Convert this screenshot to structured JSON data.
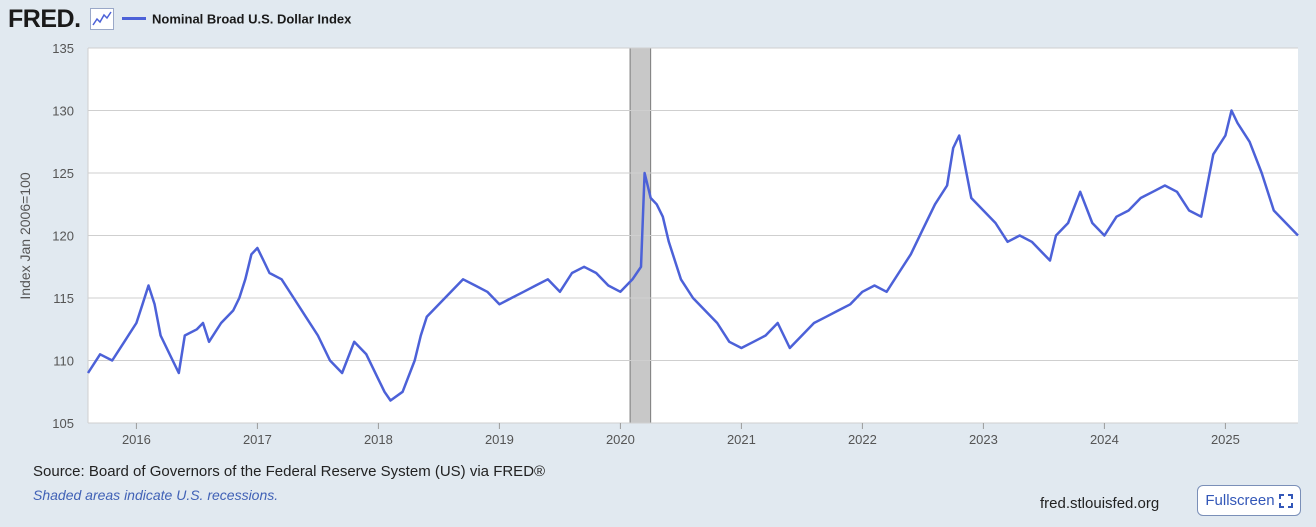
{
  "header": {
    "logo_text": "FRED",
    "logo_dot": ".",
    "legend_label": "Nominal Broad U.S. Dollar Index"
  },
  "colors": {
    "series": "#4c61d8",
    "recession": "#c8c8c8",
    "grid": "#cfcfcf",
    "plot_bg": "#ffffff",
    "page_bg": "#e1e9f0"
  },
  "footer": {
    "source": "Source: Board of Governors of the Federal Reserve System (US) via FRED®",
    "recession_note": "Shaded areas indicate U.S. recessions.",
    "site": "fred.stlouisfed.org",
    "fullscreen_label": "Fullscreen"
  },
  "icons": {
    "graph": "graph-icon",
    "fullscreen": "fullscreen-icon"
  },
  "chart_data": {
    "type": "line",
    "title": "Nominal Broad U.S. Dollar Index",
    "xlabel": "",
    "ylabel": "Index Jan 2006=100",
    "xlim": [
      2015.6,
      2025.6
    ],
    "ylim": [
      105,
      135
    ],
    "yticks": [
      105,
      110,
      115,
      120,
      125,
      130,
      135
    ],
    "xticks": [
      2016,
      2017,
      2018,
      2019,
      2020,
      2021,
      2022,
      2023,
      2024,
      2025
    ],
    "grid": true,
    "legend_position": "top-left",
    "recessions": [
      [
        2020.08,
        2020.25
      ]
    ],
    "series": [
      {
        "name": "Nominal Broad U.S. Dollar Index",
        "x": [
          2015.6,
          2015.7,
          2015.8,
          2015.9,
          2016.0,
          2016.05,
          2016.1,
          2016.15,
          2016.2,
          2016.3,
          2016.35,
          2016.4,
          2016.5,
          2016.55,
          2016.6,
          2016.7,
          2016.8,
          2016.85,
          2016.9,
          2016.95,
          2017.0,
          2017.05,
          2017.1,
          2017.2,
          2017.3,
          2017.4,
          2017.5,
          2017.6,
          2017.7,
          2017.8,
          2017.9,
          2018.0,
          2018.05,
          2018.1,
          2018.2,
          2018.3,
          2018.35,
          2018.4,
          2018.5,
          2018.6,
          2018.7,
          2018.8,
          2018.9,
          2019.0,
          2019.1,
          2019.2,
          2019.3,
          2019.4,
          2019.5,
          2019.6,
          2019.7,
          2019.8,
          2019.9,
          2020.0,
          2020.1,
          2020.17,
          2020.2,
          2020.25,
          2020.3,
          2020.35,
          2020.4,
          2020.5,
          2020.6,
          2020.7,
          2020.8,
          2020.9,
          2021.0,
          2021.1,
          2021.2,
          2021.3,
          2021.4,
          2021.5,
          2021.6,
          2021.7,
          2021.8,
          2021.9,
          2022.0,
          2022.1,
          2022.2,
          2022.3,
          2022.4,
          2022.5,
          2022.6,
          2022.7,
          2022.75,
          2022.8,
          2022.9,
          2023.0,
          2023.1,
          2023.2,
          2023.3,
          2023.4,
          2023.5,
          2023.55,
          2023.6,
          2023.7,
          2023.8,
          2023.9,
          2024.0,
          2024.1,
          2024.2,
          2024.3,
          2024.4,
          2024.5,
          2024.6,
          2024.7,
          2024.8,
          2024.9,
          2025.0,
          2025.05,
          2025.1,
          2025.2,
          2025.3,
          2025.4,
          2025.5,
          2025.6
        ],
        "values": [
          109.0,
          110.5,
          110.0,
          111.5,
          113.0,
          114.5,
          116.0,
          114.5,
          112.0,
          110.0,
          109.0,
          112.0,
          112.5,
          113.0,
          111.5,
          113.0,
          114.0,
          115.0,
          116.5,
          118.5,
          119.0,
          118.0,
          117.0,
          116.5,
          115.0,
          113.5,
          112.0,
          110.0,
          109.0,
          111.5,
          110.5,
          108.5,
          107.5,
          106.8,
          107.5,
          110.0,
          112.0,
          113.5,
          114.5,
          115.5,
          116.5,
          116.0,
          115.5,
          114.5,
          115.0,
          115.5,
          116.0,
          116.5,
          115.5,
          117.0,
          117.5,
          117.0,
          116.0,
          115.5,
          116.5,
          117.5,
          125.0,
          123.0,
          122.5,
          121.5,
          119.5,
          116.5,
          115.0,
          114.0,
          113.0,
          111.5,
          111.0,
          111.5,
          112.0,
          113.0,
          111.0,
          112.0,
          113.0,
          113.5,
          114.0,
          114.5,
          115.5,
          116.0,
          115.5,
          117.0,
          118.5,
          120.5,
          122.5,
          124.0,
          127.0,
          128.0,
          123.0,
          122.0,
          121.0,
          119.5,
          120.0,
          119.5,
          118.5,
          118.0,
          120.0,
          121.0,
          123.5,
          121.0,
          120.0,
          121.5,
          122.0,
          123.0,
          123.5,
          124.0,
          123.5,
          122.0,
          121.5,
          126.5,
          128.0,
          130.0,
          129.0,
          127.5,
          125.0,
          122.0,
          121.0,
          120.0
        ]
      }
    ]
  }
}
